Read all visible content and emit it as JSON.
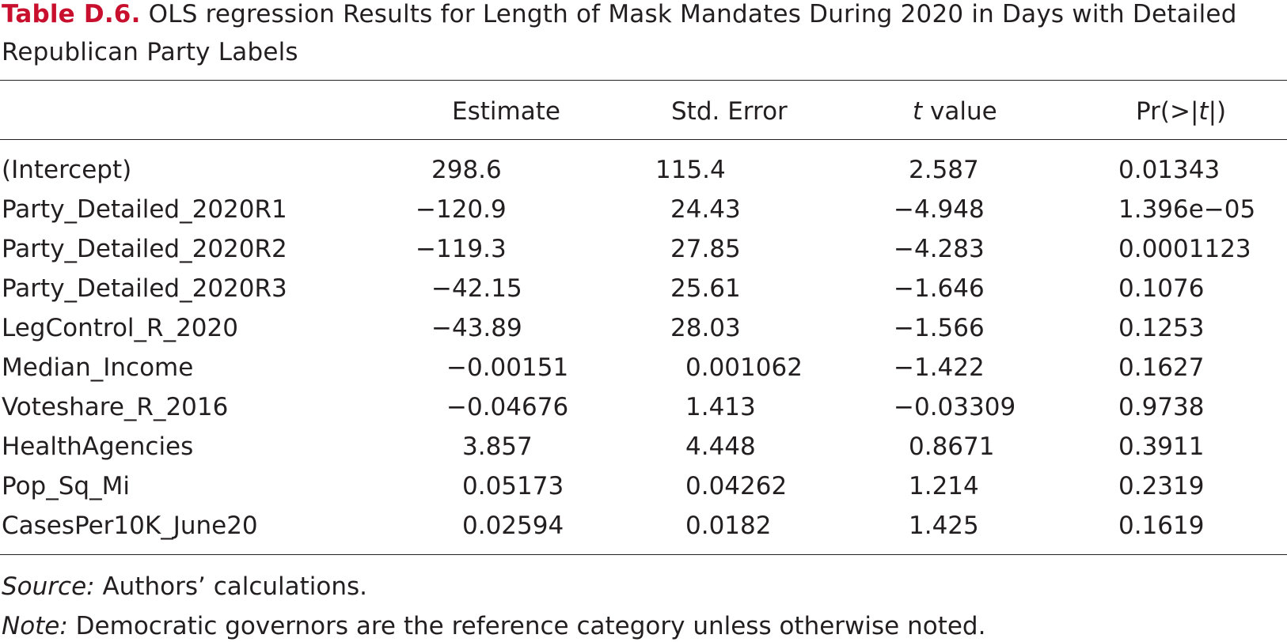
{
  "caption": {
    "label": "Table D.6.",
    "text": "OLS regression Results for Length of Mask Mandates During 2020 in Days with Detailed Republican Party Labels"
  },
  "headers": {
    "estimate": "Estimate",
    "std_error": "Std. Error",
    "t_value_italic": "t",
    "t_value_rest": " value",
    "pr_prefix": "Pr(>|",
    "pr_italic": "t",
    "pr_suffix": "|)"
  },
  "rows": [
    {
      "term": "(Intercept)",
      "estimate": "298.6",
      "std_error": "115.4",
      "t_value": "2.587",
      "p_value": "0.01343"
    },
    {
      "term": "Party_Detailed_2020R1",
      "estimate": "−120.9",
      "std_error": "24.43",
      "t_value": "−4.948",
      "p_value": "1.396e−05"
    },
    {
      "term": "Party_Detailed_2020R2",
      "estimate": "−119.3",
      "std_error": "27.85",
      "t_value": "−4.283",
      "p_value": "0.0001123"
    },
    {
      "term": "Party_Detailed_2020R3",
      "estimate": "−42.15",
      "std_error": "25.61",
      "t_value": "−1.646",
      "p_value": "0.1076"
    },
    {
      "term": "LegControl_R_2020",
      "estimate": "−43.89",
      "std_error": "28.03",
      "t_value": "−1.566",
      "p_value": "0.1253"
    },
    {
      "term": "Median_Income",
      "estimate": "−0.00151",
      "std_error": "0.001062",
      "t_value": "−1.422",
      "p_value": "0.1627"
    },
    {
      "term": "Voteshare_R_2016",
      "estimate": "−0.04676",
      "std_error": "1.413",
      "t_value": "−0.03309",
      "p_value": "0.9738"
    },
    {
      "term": "HealthAgencies",
      "estimate": "3.857",
      "std_error": "4.448",
      "t_value": "0.8671",
      "p_value": "0.3911"
    },
    {
      "term": "Pop_Sq_Mi",
      "estimate": "0.05173",
      "std_error": "0.04262",
      "t_value": "1.214",
      "p_value": "0.2319"
    },
    {
      "term": "CasesPer10K_June20",
      "estimate": "0.02594",
      "std_error": "0.0182",
      "t_value": "1.425",
      "p_value": "0.1619"
    }
  ],
  "footnotes": {
    "source_label": "Source:",
    "source_text": " Authors’ calculations.",
    "note_label": "Note:",
    "note_text": " Democratic governors are the reference category unless otherwise noted."
  }
}
